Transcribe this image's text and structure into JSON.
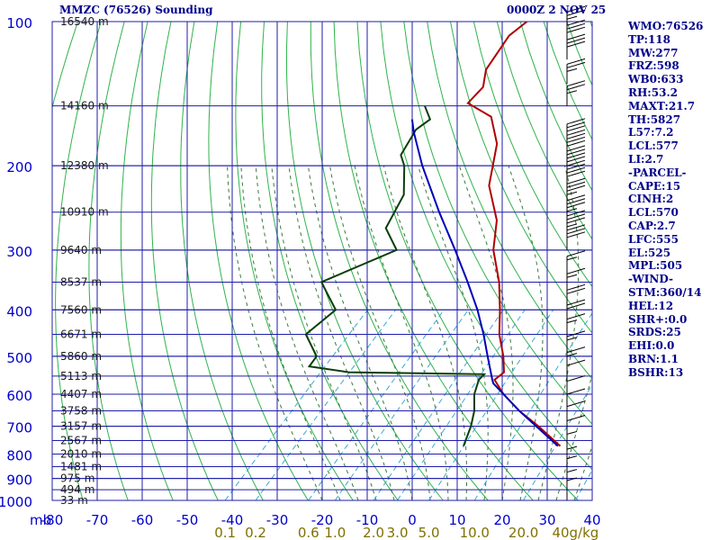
{
  "title": "MMZC (76526) Sounding",
  "datetime": "0000Z  2 NOV 25",
  "stats": [
    "WMO:76526",
    "TP:118",
    "MW:277",
    "FRZ:598",
    "WB0:633",
    "RH:53.2",
    "MAXT:21.7",
    "TH:5827",
    "L57:7.2",
    "LCL:577",
    "LI:2.7",
    "-PARCEL-",
    "CAPE:15",
    "CINH:2",
    "LCL:570",
    "CAP:2.7",
    "LFC:555",
    "EL:525",
    "MPL:505",
    "-WIND-",
    "STM:360/14",
    "HEL:12",
    "SHR+:0.0",
    "SRDS:25",
    "EHI:0.0",
    "BRN:1.1",
    "BSHR:13"
  ],
  "chart_data": {
    "type": "line",
    "title": "MMZC (76526) Sounding",
    "subtitle": "0000Z  2 NOV 25",
    "xlabel": "",
    "ylabel": "mb",
    "xlim": [
      -80,
      40
    ],
    "ylim": [
      1000,
      100
    ],
    "y_scale": "log (skew-T, temperature lines skewed)",
    "pressure_ticks": [
      100,
      200,
      300,
      400,
      500,
      600,
      700,
      800,
      900,
      1000
    ],
    "temp_ticks": [
      -80,
      -70,
      -60,
      -50,
      -40,
      -30,
      -20,
      -10,
      0,
      10,
      20,
      30,
      40
    ],
    "mixing_ratio_labels": [
      "0.1",
      "0.2",
      "0.6",
      "1.0",
      "2.0",
      "3.0",
      "5.0",
      "10.0",
      "20.0",
      "40g/kg"
    ],
    "height_labels": [
      {
        "p": 100,
        "label": "16540 m"
      },
      {
        "p": 150,
        "label": "14160 m"
      },
      {
        "p": 200,
        "label": "12380 m"
      },
      {
        "p": 250,
        "label": "10910 m"
      },
      {
        "p": 300,
        "label": "9640 m"
      },
      {
        "p": 350,
        "label": "8537 m"
      },
      {
        "p": 400,
        "label": "7560 m"
      },
      {
        "p": 450,
        "label": "6671 m"
      },
      {
        "p": 500,
        "label": "5860 m"
      },
      {
        "p": 550,
        "label": "5113 m"
      },
      {
        "p": 600,
        "label": "4407 m"
      },
      {
        "p": 650,
        "label": "3758 m"
      },
      {
        "p": 700,
        "label": "3157 m"
      },
      {
        "p": 750,
        "label": "2567 m"
      },
      {
        "p": 800,
        "label": "2010 m"
      },
      {
        "p": 850,
        "label": "1481 m"
      },
      {
        "p": 900,
        "label": "975 m"
      },
      {
        "p": 950,
        "label": "494 m"
      },
      {
        "p": 1000,
        "label": "33 m"
      }
    ],
    "series": [
      {
        "color": "#b00000",
        "points": [
          [
            770,
            21.5
          ],
          [
            700,
            12.5
          ],
          [
            650,
            5.0
          ],
          [
            600,
            -2.0
          ],
          [
            560,
            -7.0
          ],
          [
            540,
            -6.5
          ],
          [
            500,
            -10.0
          ],
          [
            450,
            -15.5
          ],
          [
            400,
            -20.5
          ],
          [
            350,
            -26.5
          ],
          [
            300,
            -34.5
          ],
          [
            260,
            -40.0
          ],
          [
            220,
            -49.0
          ],
          [
            180,
            -56.0
          ],
          [
            158,
            -63.0
          ],
          [
            148,
            -71.0
          ],
          [
            137,
            -71.0
          ],
          [
            126,
            -74.0
          ],
          [
            107,
            -76.0
          ],
          [
            100,
            -75.0
          ]
        ]
      },
      {
        "color": "#0b3d0b",
        "points": [
          [
            770,
            0.0
          ],
          [
            700,
            -2.5
          ],
          [
            650,
            -5.0
          ],
          [
            600,
            -8.5
          ],
          [
            560,
            -10.5
          ],
          [
            545,
            -10.5
          ],
          [
            540,
            -41.0
          ],
          [
            525,
            -51.0
          ],
          [
            500,
            -51.5
          ],
          [
            450,
            -58.5
          ],
          [
            400,
            -57.0
          ],
          [
            350,
            -66.0
          ],
          [
            300,
            -56.0
          ],
          [
            270,
            -63.0
          ],
          [
            230,
            -66.0
          ],
          [
            200,
            -72.0
          ],
          [
            190,
            -75.0
          ],
          [
            168,
            -77.0
          ],
          [
            160,
            -76.0
          ],
          [
            150,
            -80.0
          ]
        ]
      },
      {
        "color": "#0000b8",
        "points": [
          [
            770,
            21.0
          ],
          [
            700,
            12.0
          ],
          [
            650,
            5.0
          ],
          [
            600,
            -2.0
          ],
          [
            570,
            -6.5
          ],
          [
            560,
            -7.5
          ],
          [
            500,
            -13.5
          ],
          [
            450,
            -19.0
          ],
          [
            400,
            -25.5
          ],
          [
            350,
            -33.5
          ],
          [
            300,
            -43.0
          ],
          [
            250,
            -54.5
          ],
          [
            200,
            -68.0
          ],
          [
            170,
            -77.0
          ],
          [
            160,
            -80.0
          ]
        ]
      }
    ],
    "wind_barbs": [
      {
        "p": 1000,
        "speed_kt": 5
      },
      {
        "p": 960,
        "speed_kt": 5
      },
      {
        "p": 900,
        "speed_kt": 5
      },
      {
        "p": 860,
        "speed_kt": 5
      },
      {
        "p": 800,
        "speed_kt": 5
      },
      {
        "p": 750,
        "speed_kt": 10
      },
      {
        "p": 700,
        "speed_kt": 10
      },
      {
        "p": 660,
        "speed_kt": 10
      },
      {
        "p": 620,
        "speed_kt": 10
      },
      {
        "p": 575,
        "speed_kt": 10
      },
      {
        "p": 540,
        "speed_kt": 15
      },
      {
        "p": 500,
        "speed_kt": 15
      },
      {
        "p": 460,
        "speed_kt": 15
      },
      {
        "p": 430,
        "speed_kt": 20
      },
      {
        "p": 400,
        "speed_kt": 20
      },
      {
        "p": 370,
        "speed_kt": 15
      },
      {
        "p": 340,
        "speed_kt": 15
      },
      {
        "p": 300,
        "speed_kt": 30
      },
      {
        "p": 280,
        "speed_kt": 35
      },
      {
        "p": 260,
        "speed_kt": 35
      },
      {
        "p": 240,
        "speed_kt": 35
      },
      {
        "p": 220,
        "speed_kt": 40
      },
      {
        "p": 205,
        "speed_kt": 40
      },
      {
        "p": 190,
        "speed_kt": 40
      },
      {
        "p": 180,
        "speed_kt": 30
      },
      {
        "p": 150,
        "speed_kt": 25
      },
      {
        "p": 135,
        "speed_kt": 25
      },
      {
        "p": 120,
        "speed_kt": 30
      },
      {
        "p": 112,
        "speed_kt": 30
      },
      {
        "p": 105,
        "speed_kt": 25
      }
    ],
    "grid": true,
    "legend": "none"
  }
}
